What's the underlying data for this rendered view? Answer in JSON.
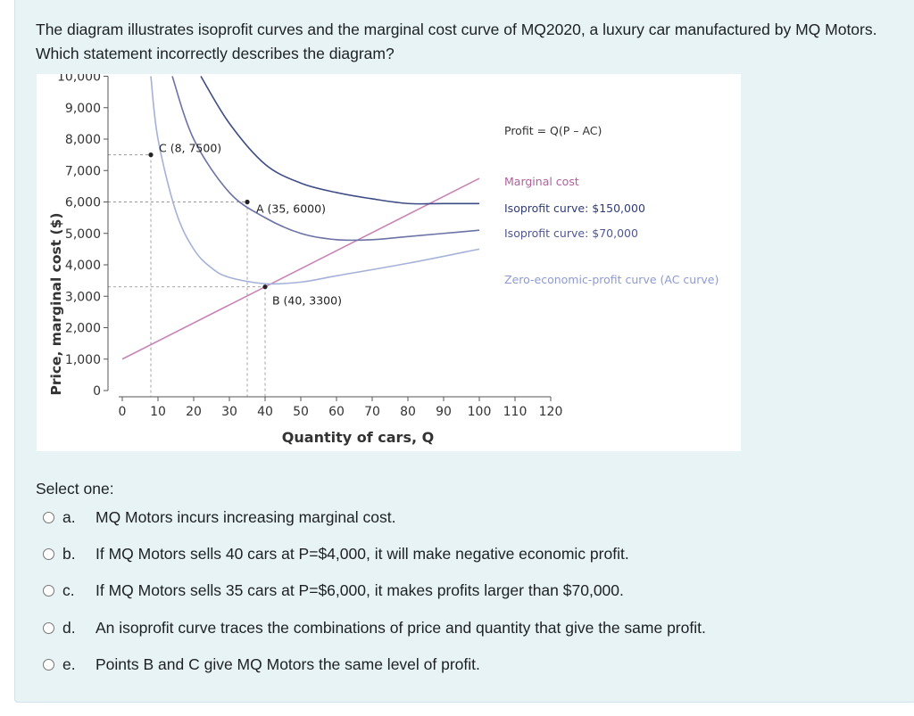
{
  "question": {
    "text": "The diagram illustrates isoprofit curves and the marginal cost curve of MQ2020, a luxury car manufactured by MQ Motors. Which statement incorrectly describes the diagram?"
  },
  "chart_data": {
    "type": "line",
    "xlabel": "Quantity of cars, Q",
    "ylabel": "Price, marginal cost ($)",
    "xlim": [
      0,
      120
    ],
    "ylim": [
      0,
      10000
    ],
    "x_ticks": [
      "0",
      "10",
      "20",
      "30",
      "40",
      "50",
      "60",
      "70",
      "80",
      "90",
      "100",
      "110",
      "120"
    ],
    "y_ticks": [
      "0",
      "1,000",
      "2,000",
      "3,000",
      "4,000",
      "5,000",
      "6,000",
      "7,000",
      "8,000",
      "9,000",
      "10,000"
    ],
    "formula_label": "Profit = Q(P – AC)",
    "series": [
      {
        "name": "Marginal cost",
        "color": "#c984b5",
        "x": [
          0,
          40,
          100
        ],
        "y": [
          1000,
          3300,
          6750
        ]
      },
      {
        "name": "Isoprofit curve: $150,000",
        "color": "#3d4c86",
        "x": [
          22,
          30,
          40,
          50,
          60,
          70,
          80,
          90,
          100
        ],
        "y": [
          10000,
          8500,
          7200,
          6600,
          6300,
          6100,
          5950,
          5950,
          5950
        ]
      },
      {
        "name": "Isoprofit curve: $70,000",
        "color": "#6b72a6",
        "x": [
          14,
          20,
          30,
          40,
          50,
          60,
          70,
          80,
          100
        ],
        "y": [
          10000,
          8000,
          6300,
          5500,
          5000,
          4800,
          4800,
          4900,
          5100
        ]
      },
      {
        "name": "Zero-economic-profit curve (AC curve)",
        "color": "#a5b1d8",
        "x": [
          8,
          10,
          15,
          20,
          25,
          30,
          40,
          50,
          60,
          80,
          100
        ],
        "y": [
          10000,
          8000,
          5700,
          4500,
          3900,
          3600,
          3400,
          3450,
          3650,
          4050,
          4500
        ]
      }
    ],
    "points": [
      {
        "label": "C (8, 7500)",
        "x": 8,
        "y": 7500
      },
      {
        "label": "A (35, 6000)",
        "x": 35,
        "y": 6000
      },
      {
        "label": "B (40, 3300)",
        "x": 40,
        "y": 3300
      }
    ]
  },
  "select_label": "Select one:",
  "options": [
    {
      "letter": "a.",
      "text": "MQ Motors incurs increasing marginal cost."
    },
    {
      "letter": "b.",
      "text": "If MQ Motors sells 40 cars at P=$4,000, it will make negative economic profit."
    },
    {
      "letter": "c.",
      "text": "If MQ Motors sells 35 cars at P=$6,000, it makes profits larger than $70,000."
    },
    {
      "letter": "d.",
      "text": "An isoprofit curve traces the combinations of price and quantity that give the same profit."
    },
    {
      "letter": "e.",
      "text": "Points B and C give MQ Motors the same level of profit."
    }
  ]
}
